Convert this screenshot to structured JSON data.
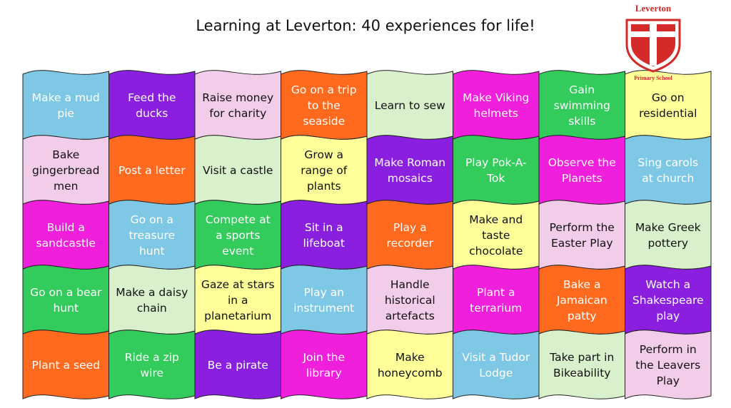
{
  "header": {
    "title": "Learning at Leverton: 40 experiences for life!",
    "logo_top": "Leverton",
    "logo_bottom": "Primary School"
  },
  "grid": {
    "rows": [
      [
        {
          "text": "Make a mud pie",
          "color": "#7ec8e6"
        },
        {
          "text": "Feed the ducks",
          "color": "#8a1fe0"
        },
        {
          "text": "Raise money for charity",
          "color": "#f2cdea"
        },
        {
          "text": "Go on a trip to the seaside",
          "color": "#ff6a1f"
        },
        {
          "text": "Learn to sew",
          "color": "#d8f0cc"
        },
        {
          "text": "Make Viking helmets",
          "color": "#f01fdc"
        },
        {
          "text": "Gain swimming skills",
          "color": "#33cc5c"
        },
        {
          "text": "Go on residential",
          "color": "#ffff99"
        }
      ],
      [
        {
          "text": "Bake gingerbread men",
          "color": "#f2cdea"
        },
        {
          "text": "Post a letter",
          "color": "#ff6a1f"
        },
        {
          "text": "Visit  a castle",
          "color": "#d8f0cc"
        },
        {
          "text": "Grow a range of plants",
          "color": "#ffff99"
        },
        {
          "text": "Make Roman mosaics",
          "color": "#8a1fe0"
        },
        {
          "text": "Play Pok-A-Tok",
          "color": "#33cc5c"
        },
        {
          "text": "Observe the Planets",
          "color": "#f01fdc"
        },
        {
          "text": "Sing carols at church",
          "color": "#7ec8e6"
        }
      ],
      [
        {
          "text": "Build a sandcastle",
          "color": "#f01fdc"
        },
        {
          "text": "Go on a treasure hunt",
          "color": "#7ec8e6"
        },
        {
          "text": "Compete at a sports event",
          "color": "#33cc5c"
        },
        {
          "text": "Sit in a lifeboat",
          "color": "#8a1fe0"
        },
        {
          "text": "Play a recorder",
          "color": "#ff6a1f"
        },
        {
          "text": "Make and taste chocolate",
          "color": "#ffff99"
        },
        {
          "text": "Perform the Easter Play",
          "color": "#f2cdea"
        },
        {
          "text": "Make Greek pottery",
          "color": "#d8f0cc"
        }
      ],
      [
        {
          "text": "Go on a bear hunt",
          "color": "#33cc5c"
        },
        {
          "text": "Make a daisy chain",
          "color": "#d8f0cc"
        },
        {
          "text": "Gaze at stars in a planetarium",
          "color": "#ffff99"
        },
        {
          "text": "Play an instrument",
          "color": "#7ec8e6"
        },
        {
          "text": "Handle historical artefacts",
          "color": "#f2cdea"
        },
        {
          "text": "Plant a terrarium",
          "color": "#f01fdc"
        },
        {
          "text": "Bake a Jamaican patty",
          "color": "#ff6a1f"
        },
        {
          "text": "Watch a Shakespeare play",
          "color": "#8a1fe0"
        }
      ],
      [
        {
          "text": "Plant a seed",
          "color": "#ff6a1f"
        },
        {
          "text": "Ride a zip wire",
          "color": "#33cc5c"
        },
        {
          "text": "Be a pirate",
          "color": "#8a1fe0"
        },
        {
          "text": "Join the library",
          "color": "#f01fdc"
        },
        {
          "text": "Make honeycomb",
          "color": "#ffff99"
        },
        {
          "text": "Visit a Tudor Lodge",
          "color": "#7ec8e6"
        },
        {
          "text": "Take part in Bikeability",
          "color": "#d8f0cc"
        },
        {
          "text": "Perform in the Leavers Play",
          "color": "#f2cdea"
        }
      ]
    ]
  }
}
